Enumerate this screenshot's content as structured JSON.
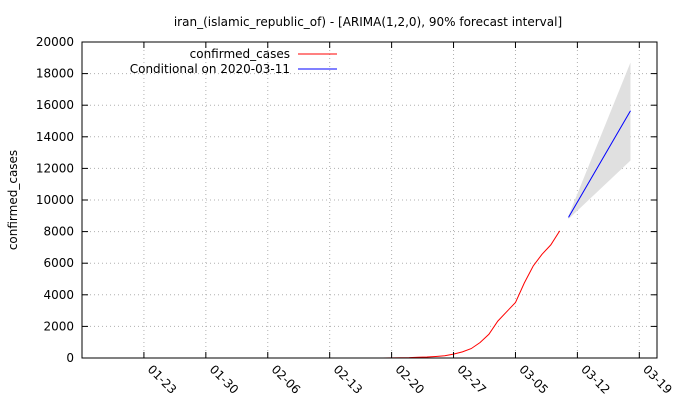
{
  "chart_data": {
    "type": "line",
    "title": "iran_(islamic_republic_of) -  [ARIMA(1,2,0), 90% forecast interval]",
    "xlabel": "",
    "ylabel": "confirmed_cases",
    "ylim": [
      0,
      20000
    ],
    "xlim": [
      "2020-01-16",
      "2020-03-21"
    ],
    "yticks": [
      "0",
      "2000",
      "4000",
      "6000",
      "8000",
      "10000",
      "12000",
      "14000",
      "16000",
      "18000",
      "20000"
    ],
    "xticks": [
      {
        "date": "2020-01-23",
        "label": "01-23"
      },
      {
        "date": "2020-01-30",
        "label": "01-30"
      },
      {
        "date": "2020-02-06",
        "label": "02-06"
      },
      {
        "date": "2020-02-13",
        "label": "02-13"
      },
      {
        "date": "2020-02-20",
        "label": "02-20"
      },
      {
        "date": "2020-02-27",
        "label": "02-27"
      },
      {
        "date": "2020-03-05",
        "label": "03-05"
      },
      {
        "date": "2020-03-12",
        "label": "03-12"
      },
      {
        "date": "2020-03-19",
        "label": "03-19"
      }
    ],
    "grid": true,
    "legend_position": "top-left",
    "series": [
      {
        "name": "confirmed_cases",
        "color": "#ff0000",
        "points": [
          [
            "2020-02-19",
            2
          ],
          [
            "2020-02-20",
            5
          ],
          [
            "2020-02-21",
            18
          ],
          [
            "2020-02-22",
            28
          ],
          [
            "2020-02-23",
            43
          ],
          [
            "2020-02-24",
            61
          ],
          [
            "2020-02-25",
            95
          ],
          [
            "2020-02-26",
            139
          ],
          [
            "2020-02-27",
            245
          ],
          [
            "2020-02-28",
            388
          ],
          [
            "2020-02-29",
            593
          ],
          [
            "2020-03-01",
            978
          ],
          [
            "2020-03-02",
            1501
          ],
          [
            "2020-03-03",
            2336
          ],
          [
            "2020-03-04",
            2922
          ],
          [
            "2020-03-05",
            3513
          ],
          [
            "2020-03-06",
            4747
          ],
          [
            "2020-03-07",
            5823
          ],
          [
            "2020-03-08",
            6566
          ],
          [
            "2020-03-09",
            7161
          ],
          [
            "2020-03-10",
            8042
          ]
        ]
      },
      {
        "name": "Conditional on 2020-03-11",
        "color": "#0000ff",
        "points": [
          [
            "2020-03-11",
            8900
          ],
          [
            "2020-03-18",
            15650
          ]
        ]
      }
    ],
    "forecast_interval": {
      "level": "90%",
      "color": "#e0e0e0",
      "lower": [
        [
          "2020-03-11",
          8800
        ],
        [
          "2020-03-18",
          12500
        ]
      ],
      "upper": [
        [
          "2020-03-11",
          9000
        ],
        [
          "2020-03-18",
          18700
        ]
      ]
    }
  }
}
